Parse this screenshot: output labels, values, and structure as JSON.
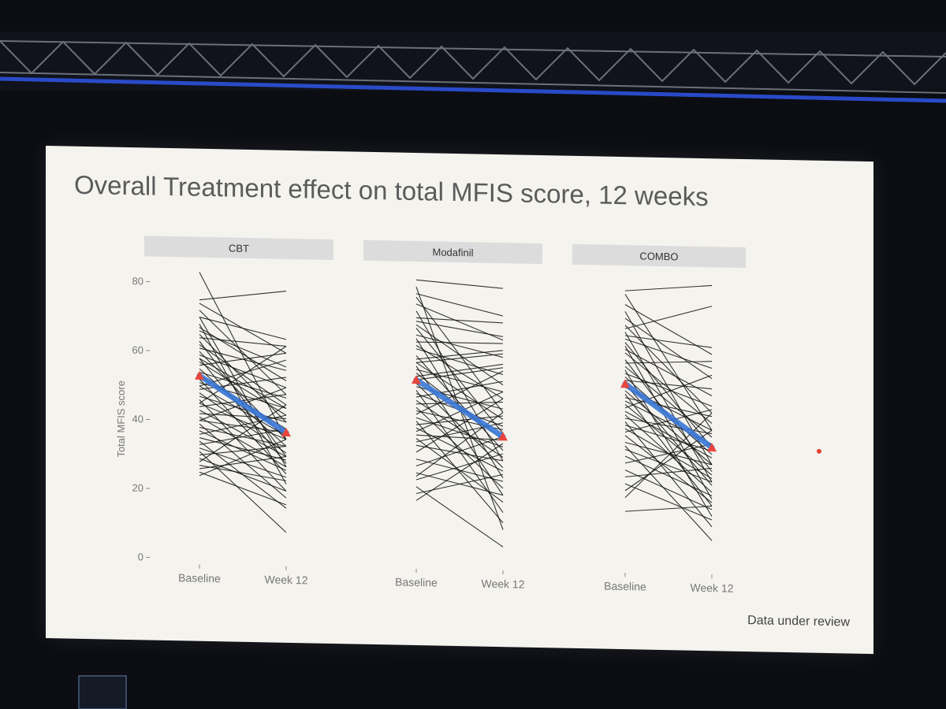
{
  "slide": {
    "title": "Overall Treatment effect on total MFIS score, 12 weeks",
    "watermark": "Data under review"
  },
  "colors": {
    "individual_lines": "#111111",
    "mean_line": "#3a78d8",
    "mean_points": "#e8453c",
    "strip_background": "#dcdcdc",
    "slide_background": "#f4f3ee"
  },
  "chart_data": {
    "type": "line",
    "ylabel": "Total MFIS score",
    "ylim": [
      0,
      80
    ],
    "yticks": [
      0,
      20,
      40,
      60,
      80
    ],
    "categories": [
      "Baseline",
      "Week 12"
    ],
    "panels": [
      {
        "name": "CBT",
        "mean": [
          53,
          37
        ],
        "series": [
          {
            "values": [
              83,
              35
            ]
          },
          {
            "values": [
              75,
              78
            ]
          },
          {
            "values": [
              74,
              60
            ]
          },
          {
            "values": [
              72,
              48
            ]
          },
          {
            "values": [
              70,
              64
            ]
          },
          {
            "values": [
              68,
              22
            ]
          },
          {
            "values": [
              67,
              52
            ]
          },
          {
            "values": [
              65,
              40
            ]
          },
          {
            "values": [
              64,
              62
            ]
          },
          {
            "values": [
              63,
              30
            ]
          },
          {
            "values": [
              62,
              45
            ]
          },
          {
            "values": [
              61,
              55
            ]
          },
          {
            "values": [
              60,
              35
            ]
          },
          {
            "values": [
              59,
              50
            ]
          },
          {
            "values": [
              58,
              28
            ]
          },
          {
            "values": [
              57,
              42
            ]
          },
          {
            "values": [
              56,
              60
            ]
          },
          {
            "values": [
              55,
              33
            ]
          },
          {
            "values": [
              54,
              47
            ]
          },
          {
            "values": [
              53,
              38
            ]
          },
          {
            "values": [
              52,
              25
            ]
          },
          {
            "values": [
              51,
              44
            ]
          },
          {
            "values": [
              50,
              36
            ]
          },
          {
            "values": [
              49,
              53
            ]
          },
          {
            "values": [
              48,
              31
            ]
          },
          {
            "values": [
              47,
              40
            ]
          },
          {
            "values": [
              46,
              20
            ]
          },
          {
            "values": [
              45,
              35
            ]
          },
          {
            "values": [
              44,
              48
            ]
          },
          {
            "values": [
              43,
              30
            ]
          },
          {
            "values": [
              42,
              41
            ]
          },
          {
            "values": [
              41,
              27
            ]
          },
          {
            "values": [
              40,
              37
            ]
          },
          {
            "values": [
              39,
              18
            ]
          },
          {
            "values": [
              38,
              33
            ]
          },
          {
            "values": [
              37,
              26
            ]
          },
          {
            "values": [
              36,
              42
            ]
          },
          {
            "values": [
              35,
              29
            ]
          },
          {
            "values": [
              34,
              15
            ]
          },
          {
            "values": [
              33,
              38
            ]
          },
          {
            "values": [
              32,
              24
            ]
          },
          {
            "values": [
              31,
              8
            ]
          },
          {
            "values": [
              30,
              33
            ]
          },
          {
            "values": [
              29,
              20
            ]
          },
          {
            "values": [
              28,
              45
            ]
          },
          {
            "values": [
              27,
              23
            ]
          },
          {
            "values": [
              26,
              30
            ]
          },
          {
            "values": [
              25,
              16
            ]
          },
          {
            "values": [
              24,
              35
            ]
          },
          {
            "values": [
              70,
              27
            ]
          },
          {
            "values": [
              66,
              56
            ]
          },
          {
            "values": [
              58,
              44
            ]
          },
          {
            "values": [
              50,
              58
            ]
          },
          {
            "values": [
              45,
              62
            ]
          },
          {
            "values": [
              40,
              50
            ]
          }
        ]
      },
      {
        "name": "Modafinil",
        "mean": [
          53,
          37
        ],
        "series": [
          {
            "values": [
              82,
              80
            ]
          },
          {
            "values": [
              80,
              10
            ]
          },
          {
            "values": [
              78,
              72
            ]
          },
          {
            "values": [
              77,
              44
            ]
          },
          {
            "values": [
              75,
              65
            ]
          },
          {
            "values": [
              73,
              30
            ]
          },
          {
            "values": [
              71,
              70
            ]
          },
          {
            "values": [
              69,
              52
            ]
          },
          {
            "values": [
              68,
              38
            ]
          },
          {
            "values": [
              66,
              60
            ]
          },
          {
            "values": [
              65,
              25
            ]
          },
          {
            "values": [
              63,
              48
            ]
          },
          {
            "values": [
              62,
              55
            ]
          },
          {
            "values": [
              60,
              33
            ]
          },
          {
            "values": [
              59,
              62
            ]
          },
          {
            "values": [
              58,
              42
            ]
          },
          {
            "values": [
              57,
              20
            ]
          },
          {
            "values": [
              56,
              50
            ]
          },
          {
            "values": [
              55,
              36
            ]
          },
          {
            "values": [
              54,
              58
            ]
          },
          {
            "values": [
              52,
              28
            ]
          },
          {
            "values": [
              51,
              45
            ]
          },
          {
            "values": [
              50,
              15
            ]
          },
          {
            "values": [
              49,
              40
            ]
          },
          {
            "values": [
              48,
              53
            ]
          },
          {
            "values": [
              47,
              31
            ]
          },
          {
            "values": [
              46,
              47
            ]
          },
          {
            "values": [
              45,
              22
            ]
          },
          {
            "values": [
              44,
              39
            ]
          },
          {
            "values": [
              43,
              56
            ]
          },
          {
            "values": [
              42,
              34
            ]
          },
          {
            "values": [
              41,
              12
            ]
          },
          {
            "values": [
              40,
              43
            ]
          },
          {
            "values": [
              39,
              27
            ]
          },
          {
            "values": [
              38,
              50
            ]
          },
          {
            "values": [
              37,
              36
            ]
          },
          {
            "values": [
              36,
              18
            ]
          },
          {
            "values": [
              35,
              41
            ]
          },
          {
            "values": [
              34,
              30
            ]
          },
          {
            "values": [
              32,
              48
            ]
          },
          {
            "values": [
              30,
              24
            ]
          },
          {
            "values": [
              28,
              37
            ]
          },
          {
            "values": [
              26,
              20
            ]
          },
          {
            "values": [
              25,
              44
            ]
          },
          {
            "values": [
              24,
              32
            ]
          },
          {
            "values": [
              22,
              5
            ]
          },
          {
            "values": [
              20,
              26
            ]
          },
          {
            "values": [
              18,
              35
            ]
          },
          {
            "values": [
              70,
              66
            ]
          },
          {
            "values": [
              64,
              64
            ]
          },
          {
            "values": [
              58,
              61
            ]
          },
          {
            "values": [
              53,
              57
            ]
          }
        ]
      },
      {
        "name": "COMBO",
        "mean": [
          53,
          35
        ],
        "series": [
          {
            "values": [
              80,
              82
            ]
          },
          {
            "values": [
              79,
              40
            ]
          },
          {
            "values": [
              76,
              62
            ]
          },
          {
            "values": [
              74,
              30
            ]
          },
          {
            "values": [
              72,
              55
            ]
          },
          {
            "values": [
              70,
              45
            ]
          },
          {
            "values": [
              69,
              76
            ]
          },
          {
            "values": [
              68,
              25
            ]
          },
          {
            "values": [
              66,
              58
            ]
          },
          {
            "values": [
              65,
              35
            ]
          },
          {
            "values": [
              64,
              20
            ]
          },
          {
            "values": [
              63,
              50
            ]
          },
          {
            "values": [
              62,
              42
            ]
          },
          {
            "values": [
              60,
              28
            ]
          },
          {
            "values": [
              59,
              60
            ]
          },
          {
            "values": [
              58,
              38
            ]
          },
          {
            "values": [
              57,
              15
            ]
          },
          {
            "values": [
              56,
              47
            ]
          },
          {
            "values": [
              55,
              33
            ]
          },
          {
            "values": [
              54,
              52
            ]
          },
          {
            "values": [
              53,
              24
            ]
          },
          {
            "values": [
              52,
              40
            ]
          },
          {
            "values": [
              51,
              30
            ]
          },
          {
            "values": [
              50,
              18
            ]
          },
          {
            "values": [
              49,
              44
            ]
          },
          {
            "values": [
              48,
              36
            ]
          },
          {
            "values": [
              47,
              27
            ]
          },
          {
            "values": [
              46,
              56
            ]
          },
          {
            "values": [
              45,
              32
            ]
          },
          {
            "values": [
              44,
              22
            ]
          },
          {
            "values": [
              43,
              39
            ]
          },
          {
            "values": [
              42,
              12
            ]
          },
          {
            "values": [
              41,
              34
            ]
          },
          {
            "values": [
              40,
              26
            ]
          },
          {
            "values": [
              39,
              46
            ]
          },
          {
            "values": [
              38,
              19
            ]
          },
          {
            "values": [
              36,
              30
            ]
          },
          {
            "values": [
              35,
              8
            ]
          },
          {
            "values": [
              34,
              25
            ]
          },
          {
            "values": [
              32,
              21
            ]
          },
          {
            "values": [
              30,
              36
            ]
          },
          {
            "values": [
              28,
              17
            ]
          },
          {
            "values": [
              26,
              29
            ]
          },
          {
            "values": [
              24,
              14
            ]
          },
          {
            "values": [
              22,
              40
            ]
          },
          {
            "values": [
              20,
              45
            ]
          },
          {
            "values": [
              16,
              18
            ]
          },
          {
            "values": [
              67,
              64
            ]
          }
        ]
      }
    ]
  }
}
